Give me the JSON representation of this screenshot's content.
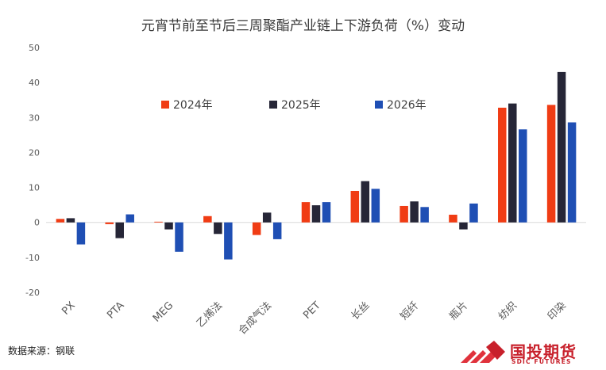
{
  "title": "元宵节前至节后三周聚酯产业链上下游负荷（%）变动",
  "source": "数据来源：钢联",
  "logo": {
    "cn": "国投期货",
    "en": "SDIC FUTURES"
  },
  "colors": {
    "2024年": "#f03c14",
    "2025年": "#262637",
    "2026年": "#1f4fb4",
    "axis": "#d9d9d9"
  },
  "chart_data": {
    "type": "bar",
    "title": "元宵节前至节后三周聚酯产业链上下游负荷（%）变动",
    "xlabel": "",
    "ylabel": "",
    "ylim": [
      -20,
      50
    ],
    "yticks": [
      -20,
      -10,
      0,
      10,
      20,
      30,
      40,
      50
    ],
    "categories": [
      "PX",
      "PTA",
      "MEG",
      "乙烯法",
      "合成气法",
      "PET",
      "长丝",
      "短纤",
      "瓶片",
      "纺织",
      "印染"
    ],
    "legend_position": "top-center",
    "grid": false,
    "series": [
      {
        "name": "2024年",
        "values": [
          1.0,
          -0.5,
          0.2,
          1.8,
          -3.6,
          5.8,
          9.0,
          4.7,
          2.2,
          32.8,
          33.6
        ]
      },
      {
        "name": "2025年",
        "values": [
          1.2,
          -4.5,
          -2.0,
          -3.3,
          2.8,
          4.9,
          11.8,
          6.0,
          -2.0,
          34.0,
          43.0
        ]
      },
      {
        "name": "2026年",
        "values": [
          -6.3,
          2.3,
          -8.4,
          -10.6,
          -4.8,
          5.8,
          9.6,
          4.4,
          5.4,
          26.6,
          28.6
        ]
      }
    ]
  }
}
